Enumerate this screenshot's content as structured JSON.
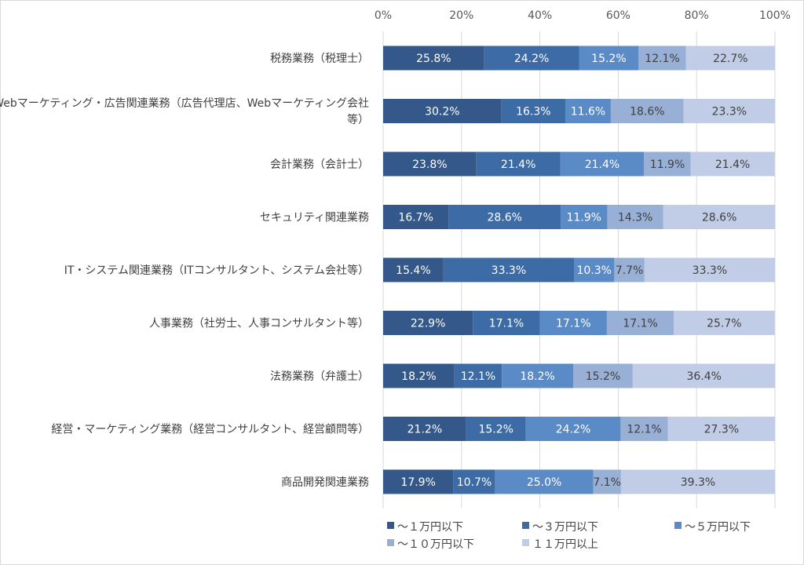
{
  "chart_data": {
    "type": "bar",
    "orientation": "horizontal",
    "stacked": true,
    "percent_stacked": true,
    "xlim": [
      0,
      100
    ],
    "x_ticks": [
      "0%",
      "20%",
      "40%",
      "60%",
      "80%",
      "100%"
    ],
    "grid": true,
    "legend_position": "bottom",
    "categories": [
      [
        "税務業務（税理士）"
      ],
      [
        "Webマーケティング・広告関連業務（広告代理店、Webマーケティング会社",
        "等）"
      ],
      [
        "会計業務（会計士）"
      ],
      [
        "セキュリティ関連業務"
      ],
      [
        "IT・システム関連業務（ITコンサルタント、システム会社等）"
      ],
      [
        "人事業務（社労士、人事コンサルタント等）"
      ],
      [
        "法務業務（弁護士）"
      ],
      [
        "経営・マーケティング業務（経営コンサルタント、経営顧問等）"
      ],
      [
        "商品開発関連業務"
      ]
    ],
    "series": [
      {
        "name": "～１万円以下",
        "color": "#335889",
        "label_color": "#ffffff",
        "values": [
          25.8,
          30.2,
          23.8,
          16.7,
          15.4,
          22.9,
          18.2,
          21.2,
          17.9
        ],
        "labels": [
          "25.8%",
          "30.2%",
          "23.8%",
          "16.7%",
          "15.4%",
          "22.9%",
          "18.2%",
          "21.2%",
          "17.9%"
        ]
      },
      {
        "name": "～３万円以下",
        "color": "#3d6ba6",
        "label_color": "#ffffff",
        "values": [
          24.2,
          16.3,
          21.4,
          28.6,
          33.3,
          17.1,
          12.1,
          15.2,
          10.7
        ],
        "labels": [
          "24.2%",
          "16.3%",
          "21.4%",
          "28.6%",
          "33.3%",
          "17.1%",
          "12.1%",
          "15.2%",
          "10.7%"
        ]
      },
      {
        "name": "～５万円以下",
        "color": "#5b8bc7",
        "label_color": "#ffffff",
        "values": [
          15.2,
          11.6,
          21.4,
          11.9,
          10.3,
          17.1,
          18.2,
          24.2,
          25.0
        ],
        "labels": [
          "15.2%",
          "11.6%",
          "21.4%",
          "11.9%",
          "10.3%",
          "17.1%",
          "18.2%",
          "24.2%",
          "25.0%"
        ]
      },
      {
        "name": "～１０万円以下",
        "color": "#98afd6",
        "label_color": "#404040",
        "values": [
          12.1,
          18.6,
          11.9,
          14.3,
          7.7,
          17.1,
          15.2,
          12.1,
          7.1
        ],
        "labels": [
          "12.1%",
          "18.6%",
          "11.9%",
          "14.3%",
          "7.7%",
          "17.1%",
          "15.2%",
          "12.1%",
          "7.1%"
        ]
      },
      {
        "name": "１１万円以上",
        "color": "#c1cce6",
        "label_color": "#404040",
        "values": [
          22.7,
          23.3,
          21.4,
          28.6,
          33.3,
          25.7,
          36.4,
          27.3,
          39.3
        ],
        "labels": [
          "22.7%",
          "23.3%",
          "21.4%",
          "28.6%",
          "33.3%",
          "25.7%",
          "36.4%",
          "27.3%",
          "39.3%"
        ]
      }
    ]
  }
}
